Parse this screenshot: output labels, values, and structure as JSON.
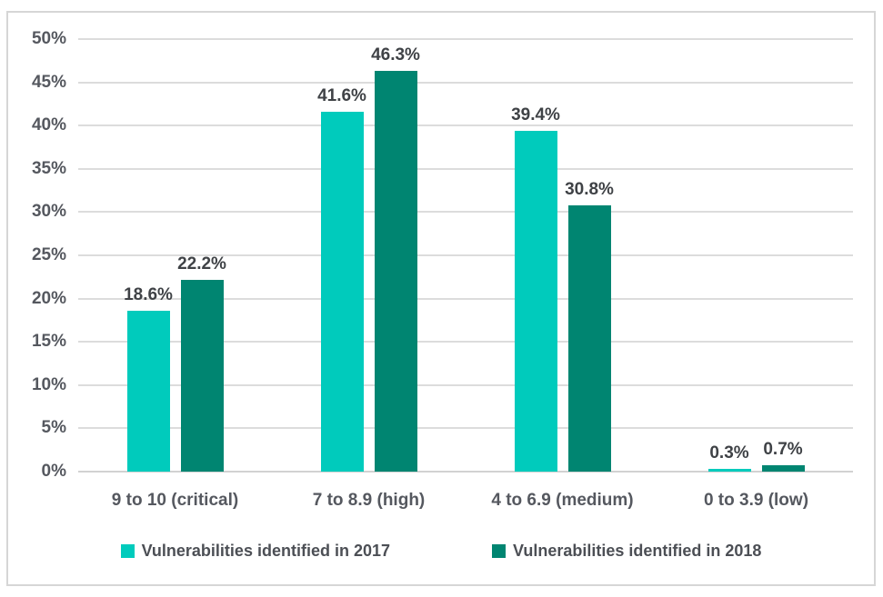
{
  "chart_data": {
    "type": "bar",
    "title": "",
    "xlabel": "",
    "ylabel": "",
    "categories": [
      "9 to 10 (critical)",
      "7 to 8.9 (high)",
      "4 to 6.9 (medium)",
      "0 to 3.9 (low)"
    ],
    "series": [
      {
        "name": "Vulnerabilities identified in 2017",
        "color": "#00cbbc",
        "values": [
          18.6,
          41.6,
          39.4,
          0.3
        ]
      },
      {
        "name": "Vulnerabilities identified in 2018",
        "color": "#008571",
        "values": [
          22.2,
          46.3,
          30.8,
          0.7
        ]
      }
    ],
    "data_labels": [
      [
        "18.6%",
        "41.6%",
        "39.4%",
        "0.3%"
      ],
      [
        "22.2%",
        "46.3%",
        "30.8%",
        "0.7%"
      ]
    ],
    "ylim": [
      0,
      50
    ],
    "ytick_step": 5,
    "yticks": [
      "0%",
      "5%",
      "10%",
      "15%",
      "20%",
      "25%",
      "30%",
      "35%",
      "40%",
      "45%",
      "50%"
    ],
    "grid": true,
    "legend_position": "bottom",
    "colors": {
      "gridline": "#dcdcdc",
      "frame_border": "#d6d6d6",
      "tick_text": "#55585f",
      "data_label_text": "#3f4246",
      "background": "#ffffff"
    }
  }
}
